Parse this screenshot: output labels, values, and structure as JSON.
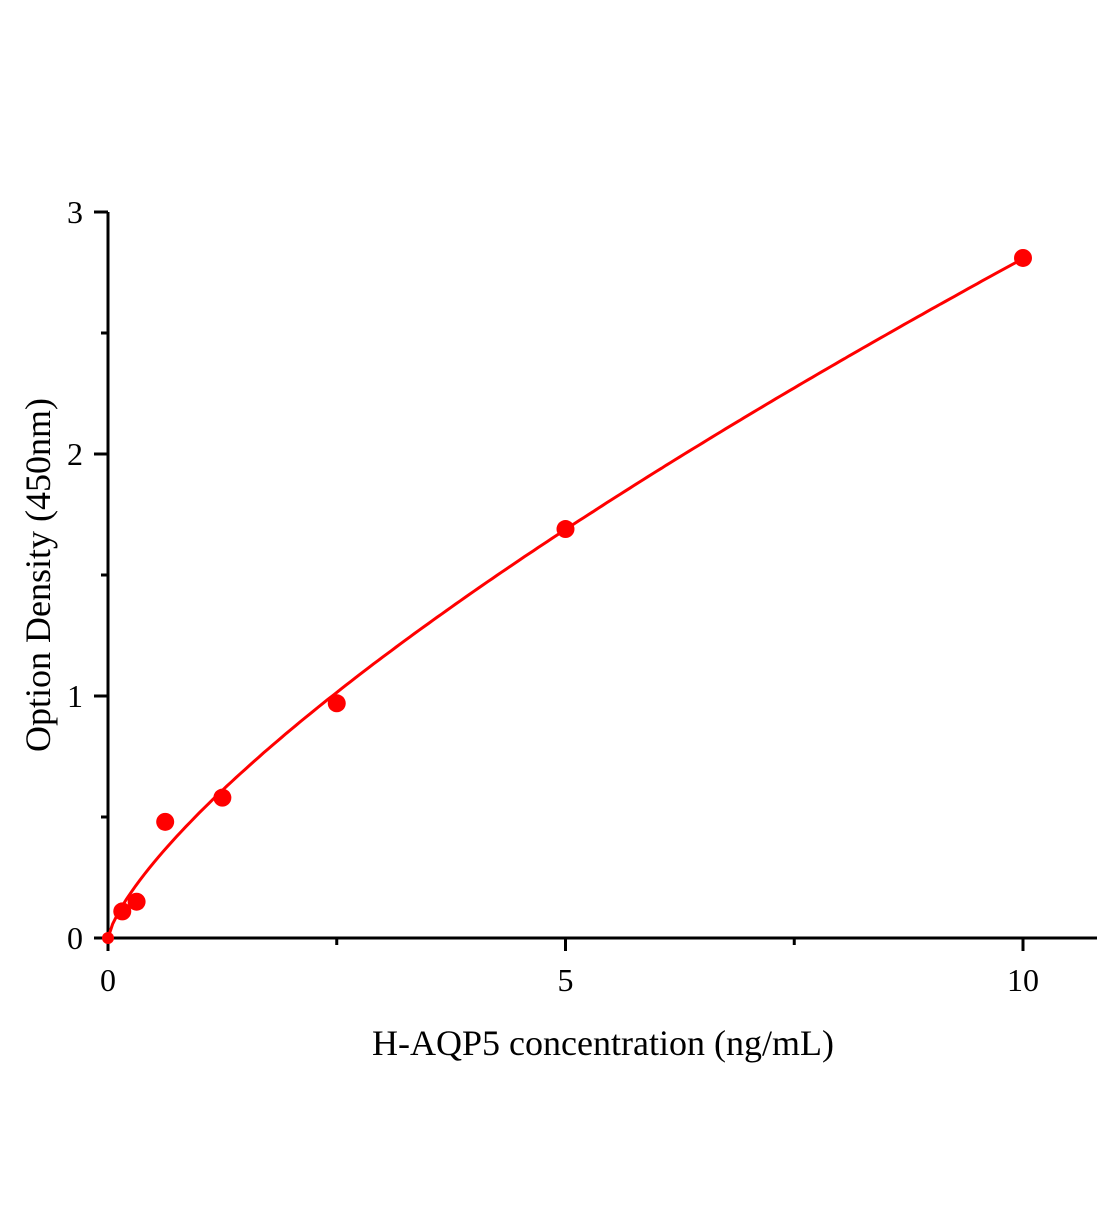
{
  "chart_data": {
    "type": "scatter",
    "title": "",
    "xlabel": "H-AQP5 concentration (ng/mL)",
    "ylabel": "Option Density (450nm)",
    "xlim": [
      0,
      10.8
    ],
    "ylim": [
      0,
      3
    ],
    "xticks": [
      0,
      5,
      10
    ],
    "xtick_labels": [
      "0",
      "5",
      "10"
    ],
    "xminor": [
      2.5,
      7.5
    ],
    "yticks": [
      0,
      1,
      2,
      3
    ],
    "ytick_labels": [
      "0",
      "1",
      "2",
      "3"
    ],
    "yminor": [
      0.5,
      1.5,
      2.5
    ],
    "grid": false,
    "series": [
      {
        "x": [
          0,
          0.156,
          0.3125,
          0.625,
          1.25,
          2.5,
          5,
          10
        ],
        "y": [
          0,
          0.11,
          0.15,
          0.48,
          0.58,
          0.97,
          1.69,
          2.81
        ],
        "color": "#ff0000",
        "fit_line": true
      }
    ]
  }
}
